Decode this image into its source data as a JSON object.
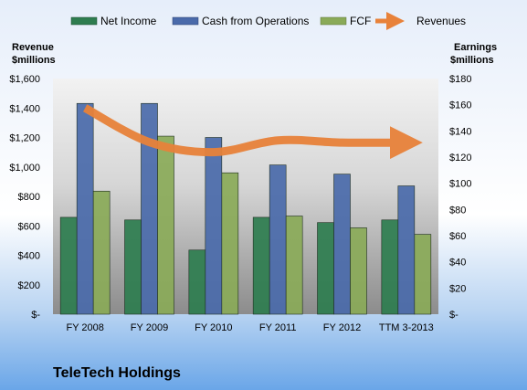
{
  "chart_data": {
    "type": "bar",
    "title": "TeleTech Holdings",
    "categories": [
      "FY 2008",
      "FY 2009",
      "FY 2010",
      "FY 2011",
      "FY 2012",
      "TTM 3-2013"
    ],
    "left_axis": {
      "label_line1": "Revenue",
      "label_line2": "$millions",
      "ylim": [
        0,
        1600
      ],
      "ticks": [
        0,
        200,
        400,
        600,
        800,
        1000,
        1200,
        1400,
        1600
      ],
      "tick_labels": [
        "$-",
        "$200",
        "$400",
        "$600",
        "$800",
        "$1,000",
        "$1,200",
        "$1,400",
        "$1,600"
      ]
    },
    "right_axis": {
      "label_line1": "Earnings",
      "label_line2": "$millions",
      "ylim": [
        0,
        180
      ],
      "ticks": [
        0,
        20,
        40,
        60,
        80,
        100,
        120,
        140,
        160,
        180
      ],
      "tick_labels": [
        "$-",
        "$20",
        "$40",
        "$60",
        "$80",
        "$100",
        "$120",
        "$140",
        "$160",
        "$180"
      ]
    },
    "series": [
      {
        "name": "Net Income",
        "type": "bar",
        "axis": "right",
        "color": "#2e7d4f",
        "values": [
          74,
          72,
          49,
          74,
          70,
          72
        ]
      },
      {
        "name": "Cash from Operations",
        "type": "bar",
        "axis": "right",
        "color": "#4a6aaa",
        "values": [
          161,
          161,
          135,
          114,
          107,
          98
        ]
      },
      {
        "name": "FCF",
        "type": "bar",
        "axis": "right",
        "color": "#8aaa58",
        "values": [
          94,
          136,
          108,
          75,
          66,
          61
        ]
      },
      {
        "name": "Revenues",
        "type": "line",
        "axis": "left",
        "color": "#e8823a",
        "values": [
          1400,
          1168,
          1100,
          1180,
          1165,
          1165
        ]
      }
    ],
    "legend_position": "top",
    "grid": false
  },
  "colors": {
    "bar_gradient_top": "#f2f2f2",
    "bar_gradient_bottom": "#8c8c8c",
    "outer_bg_top": "#e6eefa",
    "outer_bg_bottom": "#6aa6e8"
  }
}
